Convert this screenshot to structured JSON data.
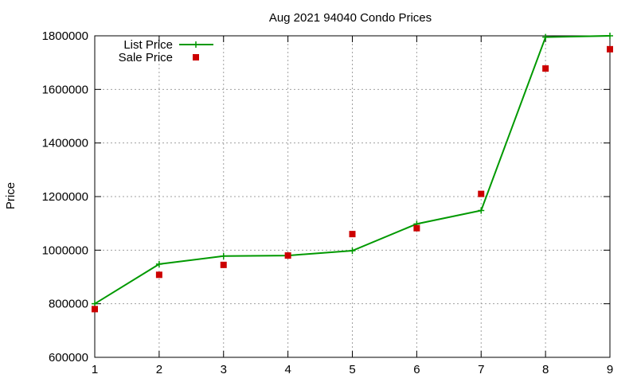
{
  "chart_data": {
    "type": "line",
    "title": "Aug 2021 94040 Condo Prices",
    "xlabel": "",
    "ylabel": "Price",
    "xlim": [
      1,
      9
    ],
    "ylim": [
      600000,
      1800000
    ],
    "x_ticks": [
      1,
      2,
      3,
      4,
      5,
      6,
      7,
      8,
      9
    ],
    "y_ticks": [
      600000,
      800000,
      1000000,
      1200000,
      1400000,
      1600000,
      1800000
    ],
    "grid": true,
    "legend_position": "top-left",
    "series": [
      {
        "name": "List Price",
        "style": "line-with-plus-markers",
        "color": "#009900",
        "x": [
          1,
          2,
          3,
          4,
          5,
          6,
          7,
          8,
          9
        ],
        "values": [
          800000,
          948000,
          978000,
          980000,
          998000,
          1098000,
          1148000,
          1795000,
          1800000
        ]
      },
      {
        "name": "Sale Price",
        "style": "square-markers",
        "color": "#cc0000",
        "x": [
          1,
          2,
          3,
          4,
          5,
          6,
          7,
          8,
          9
        ],
        "values": [
          780000,
          908000,
          945000,
          980000,
          1060000,
          1082000,
          1210000,
          1678000,
          1750000
        ]
      }
    ]
  }
}
